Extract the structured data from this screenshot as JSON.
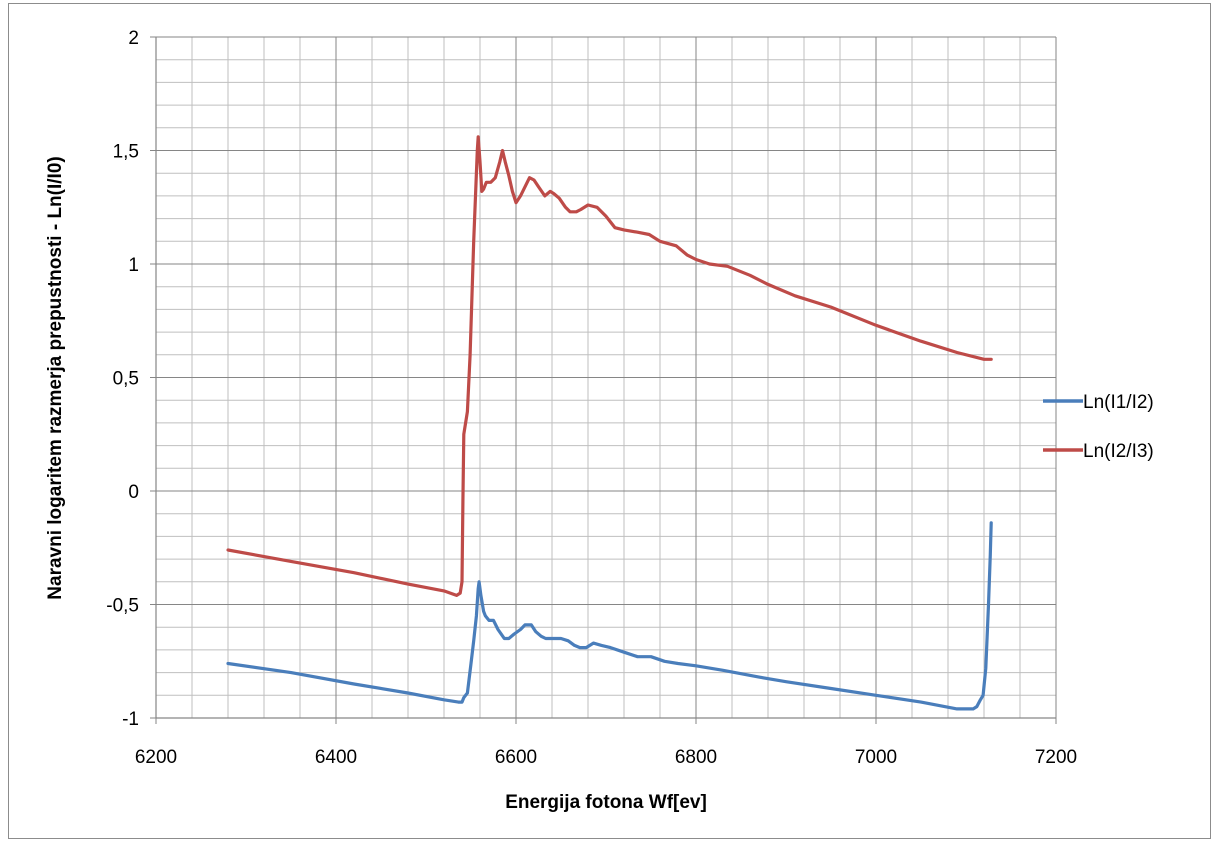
{
  "chart_data": {
    "type": "line",
    "title": "",
    "xlabel": "Energija fotona Wf[ev]",
    "ylabel": "Naravni logaritem razmerja prepustnosti - Ln(I/I0)",
    "xlim": [
      6200,
      7200
    ],
    "ylim": [
      -1,
      2
    ],
    "x_ticks": [
      6200,
      6400,
      6600,
      6800,
      7000,
      7200
    ],
    "x_tick_labels": [
      "6200",
      "6400",
      "6600",
      "6800",
      "7000",
      "7200"
    ],
    "y_ticks": [
      -1,
      -0.5,
      0,
      0.5,
      1,
      1.5,
      2
    ],
    "y_tick_labels": [
      "-1",
      "-0,5",
      "0",
      "0,5",
      "1",
      "1,5",
      "2"
    ],
    "grid": true,
    "legend_position": "right",
    "series": [
      {
        "name": "Ln(I1/I2)",
        "color": "#4a7ebb",
        "points": [
          [
            6280,
            -0.76
          ],
          [
            6350,
            -0.8
          ],
          [
            6420,
            -0.85
          ],
          [
            6480,
            -0.89
          ],
          [
            6520,
            -0.92
          ],
          [
            6536,
            -0.93
          ],
          [
            6540,
            -0.93
          ],
          [
            6542,
            -0.91
          ],
          [
            6546,
            -0.89
          ],
          [
            6550,
            -0.76
          ],
          [
            6553,
            -0.66
          ],
          [
            6556,
            -0.55
          ],
          [
            6558,
            -0.43
          ],
          [
            6559,
            -0.4
          ],
          [
            6561,
            -0.46
          ],
          [
            6564,
            -0.53
          ],
          [
            6566,
            -0.55
          ],
          [
            6570,
            -0.57
          ],
          [
            6575,
            -0.57
          ],
          [
            6580,
            -0.61
          ],
          [
            6587,
            -0.65
          ],
          [
            6592,
            -0.65
          ],
          [
            6598,
            -0.63
          ],
          [
            6605,
            -0.61
          ],
          [
            6610,
            -0.59
          ],
          [
            6617,
            -0.59
          ],
          [
            6622,
            -0.62
          ],
          [
            6628,
            -0.64
          ],
          [
            6633,
            -0.65
          ],
          [
            6640,
            -0.65
          ],
          [
            6650,
            -0.65
          ],
          [
            6658,
            -0.66
          ],
          [
            6665,
            -0.68
          ],
          [
            6671,
            -0.69
          ],
          [
            6678,
            -0.69
          ],
          [
            6686,
            -0.67
          ],
          [
            6695,
            -0.68
          ],
          [
            6705,
            -0.69
          ],
          [
            6720,
            -0.71
          ],
          [
            6735,
            -0.73
          ],
          [
            6750,
            -0.73
          ],
          [
            6765,
            -0.75
          ],
          [
            6780,
            -0.76
          ],
          [
            6800,
            -0.77
          ],
          [
            6830,
            -0.79
          ],
          [
            6870,
            -0.82
          ],
          [
            6900,
            -0.84
          ],
          [
            6950,
            -0.87
          ],
          [
            7000,
            -0.9
          ],
          [
            7050,
            -0.93
          ],
          [
            7090,
            -0.96
          ],
          [
            7108,
            -0.96
          ],
          [
            7112,
            -0.95
          ],
          [
            7116,
            -0.92
          ],
          [
            7119,
            -0.9
          ],
          [
            7122,
            -0.78
          ],
          [
            7125,
            -0.5
          ],
          [
            7127,
            -0.28
          ],
          [
            7128,
            -0.14
          ]
        ]
      },
      {
        "name": "Ln(I2/I3)",
        "color": "#be4b48",
        "points": [
          [
            6280,
            -0.26
          ],
          [
            6350,
            -0.31
          ],
          [
            6420,
            -0.36
          ],
          [
            6480,
            -0.41
          ],
          [
            6520,
            -0.44
          ],
          [
            6534,
            -0.46
          ],
          [
            6538,
            -0.45
          ],
          [
            6540,
            -0.4
          ],
          [
            6541,
            -0.05
          ],
          [
            6542,
            0.25
          ],
          [
            6546,
            0.35
          ],
          [
            6549,
            0.6
          ],
          [
            6551,
            0.85
          ],
          [
            6553,
            1.1
          ],
          [
            6555,
            1.3
          ],
          [
            6557,
            1.5
          ],
          [
            6558,
            1.56
          ],
          [
            6560,
            1.45
          ],
          [
            6562,
            1.32
          ],
          [
            6564,
            1.33
          ],
          [
            6567,
            1.36
          ],
          [
            6572,
            1.36
          ],
          [
            6577,
            1.38
          ],
          [
            6582,
            1.45
          ],
          [
            6585,
            1.5
          ],
          [
            6588,
            1.45
          ],
          [
            6592,
            1.39
          ],
          [
            6596,
            1.32
          ],
          [
            6600,
            1.27
          ],
          [
            6605,
            1.3
          ],
          [
            6610,
            1.34
          ],
          [
            6615,
            1.38
          ],
          [
            6620,
            1.37
          ],
          [
            6625,
            1.34
          ],
          [
            6632,
            1.3
          ],
          [
            6638,
            1.32
          ],
          [
            6642,
            1.31
          ],
          [
            6648,
            1.29
          ],
          [
            6655,
            1.25
          ],
          [
            6660,
            1.23
          ],
          [
            6667,
            1.23
          ],
          [
            6672,
            1.24
          ],
          [
            6680,
            1.26
          ],
          [
            6690,
            1.25
          ],
          [
            6700,
            1.21
          ],
          [
            6710,
            1.16
          ],
          [
            6720,
            1.15
          ],
          [
            6735,
            1.14
          ],
          [
            6748,
            1.13
          ],
          [
            6760,
            1.1
          ],
          [
            6778,
            1.08
          ],
          [
            6790,
            1.04
          ],
          [
            6800,
            1.02
          ],
          [
            6815,
            1.0
          ],
          [
            6835,
            0.99
          ],
          [
            6860,
            0.95
          ],
          [
            6880,
            0.91
          ],
          [
            6910,
            0.86
          ],
          [
            6950,
            0.81
          ],
          [
            7000,
            0.73
          ],
          [
            7050,
            0.66
          ],
          [
            7090,
            0.61
          ],
          [
            7120,
            0.58
          ],
          [
            7128,
            0.58
          ]
        ]
      }
    ]
  }
}
